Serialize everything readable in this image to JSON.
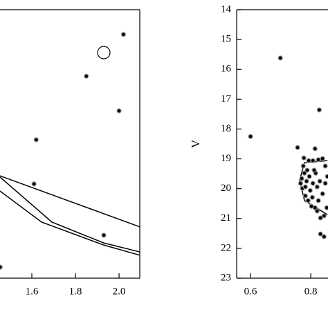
{
  "chart_data": [
    {
      "type": "scatter",
      "xlim": [
        1.454,
        2.095
      ],
      "ylim": [
        14,
        23
      ],
      "xticks": [
        1.6,
        1.8,
        {
          "value": 2,
          "label": "2.0"
        }
      ],
      "color": "#000000",
      "series": [
        {
          "x": [
            1.455,
            1.93,
            1.61,
            1.62,
            2.0,
            1.85,
            2.02
          ],
          "values": [
            14.37,
            15.44,
            17.16,
            18.64,
            19.61,
            20.77,
            22.17
          ]
        }
      ],
      "lines": [
        {
          "x": [
            1.454,
            1.645,
            1.93,
            2.095
          ],
          "y": [
            16.92,
            15.88,
            15.11,
            14.77
          ]
        },
        {
          "x": [
            1.454,
            1.692,
            1.93,
            2.095
          ],
          "y": [
            17.39,
            15.88,
            15.18,
            14.88
          ]
        },
        {
          "x": [
            1.454,
            2.095
          ],
          "y": [
            17.43,
            15.72
          ]
        }
      ]
    },
    {
      "type": "scatter",
      "ylabel": "V",
      "xlim": [
        0.554,
        0.857
      ],
      "ylim": [
        23,
        14
      ],
      "xticks": [
        0.6,
        0.8
      ],
      "yticks": [
        14,
        15,
        16,
        17,
        18,
        19,
        20,
        21,
        22,
        23
      ],
      "color": "#000000",
      "series": [
        {
          "x": [
            0.699,
            0.6,
            0.828,
            0.756,
            0.77,
            0.766,
            0.772,
            0.779,
            0.788,
            0.793,
            0.807,
            0.825,
            0.839,
            0.848,
            0.775,
            0.782,
            0.791,
            0.802,
            0.814,
            0.821,
            0.832,
            0.844,
            0.853,
            0.839,
            0.83,
            0.821,
            0.807,
            0.798,
            0.816,
            0.848,
            0.786,
            0.795,
            0.825,
            0.844,
            0.832,
            0.811,
            0.855,
            0.782,
            0.805,
            0.777,
            0.814
          ],
          "values": [
            15.62,
            18.25,
            17.36,
            18.62,
            19.66,
            19.82,
            19.99,
            19.48,
            19.38,
            19.06,
            19.06,
            19.03,
            18.99,
            19.24,
            19.24,
            20.24,
            20.4,
            20.59,
            20.64,
            20.75,
            20.98,
            20.91,
            20.64,
            20.17,
            19.75,
            19.94,
            19.82,
            20.06,
            19.48,
            19.82,
            19.75,
            19.59,
            20.4,
            21.61,
            21.52,
            19.38,
            19.59,
            19.94,
            20.29,
            18.97,
            18.66
          ]
        }
      ],
      "lines": [
        {
          "x": [
            0.855,
            0.779,
            0.763,
            0.779,
            0.855
          ],
          "y": [
            19.06,
            19.13,
            19.71,
            20.4,
            20.87
          ]
        }
      ]
    }
  ]
}
